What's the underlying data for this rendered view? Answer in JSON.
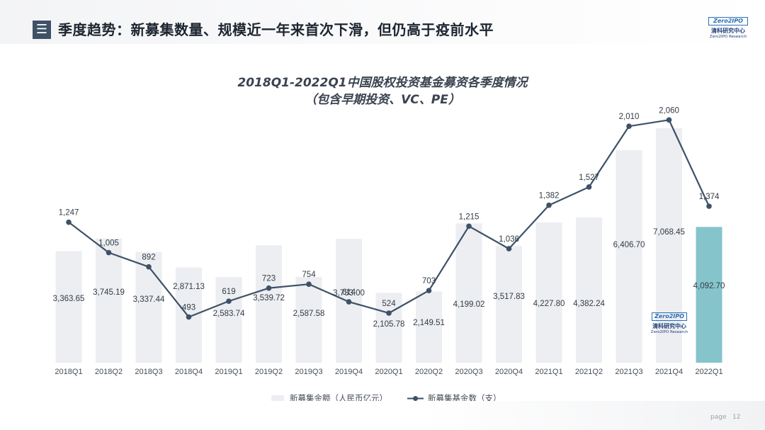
{
  "header": {
    "icon_glyph": "☰",
    "title": "季度趋势：新募集数量、规模近一年来首次下滑，但仍高于疫前水平"
  },
  "logo": {
    "badge": "Zero2IPO",
    "name_cn": "清科研究中心",
    "name_en": "Zero2IPO Research"
  },
  "chart_title": {
    "line1": "2018Q1-2022Q1中国股权投资基金募资各季度情况",
    "line2": "（包含早期投资、VC、PE）"
  },
  "chart_data": {
    "type": "bar",
    "categories": [
      "2018Q1",
      "2018Q2",
      "2018Q3",
      "2018Q4",
      "2019Q1",
      "2019Q2",
      "2019Q3",
      "2019Q4",
      "2020Q1",
      "2020Q2",
      "2020Q3",
      "2020Q4",
      "2021Q1",
      "2021Q2",
      "2021Q3",
      "2021Q4",
      "2022Q1"
    ],
    "series": [
      {
        "name": "新募集金额（人民币亿元）",
        "kind": "bar",
        "values": [
          3363.65,
          3745.19,
          3337.44,
          2871.13,
          2583.74,
          3539.72,
          2587.58,
          3733.0,
          2105.78,
          2149.51,
          4199.02,
          3517.83,
          4227.8,
          4382.24,
          6406.7,
          7068.45,
          4092.7
        ],
        "labels": [
          "3,363.65",
          "3,745.19",
          "3,337.44",
          "2,871.13",
          "2,583.74",
          "3,539.72",
          "2,587.58",
          "3,733.00",
          "2,105.78",
          "2,149.51",
          "4,199.02",
          "3,517.83",
          "4,227.80",
          "4,382.24",
          "6,406.70",
          "7,068.45",
          "4,092.70"
        ],
        "color": "#eceef1",
        "highlight_color": "#86c4cc",
        "highlight_index": 16
      },
      {
        "name": "新募集基金数（支）",
        "kind": "line",
        "values": [
          1247,
          1005,
          892,
          493,
          619,
          723,
          754,
          614,
          524,
          703,
          1215,
          1036,
          1382,
          1527,
          2010,
          2060,
          1374
        ],
        "labels": [
          "1,247",
          "1,005",
          "892",
          "493",
          "619",
          "723",
          "754",
          "614",
          "524",
          "703",
          "1,215",
          "1,036",
          "1,382",
          "1,527",
          "2,010",
          "2,060",
          "1,374"
        ],
        "color": "#3d5168"
      }
    ],
    "ylim_bar": [
      0,
      8000
    ],
    "ylim_line": [
      0,
      2200
    ],
    "grid": false,
    "legend_position": "bottom"
  },
  "footer": {
    "page_label": "page",
    "page_number": "12"
  }
}
